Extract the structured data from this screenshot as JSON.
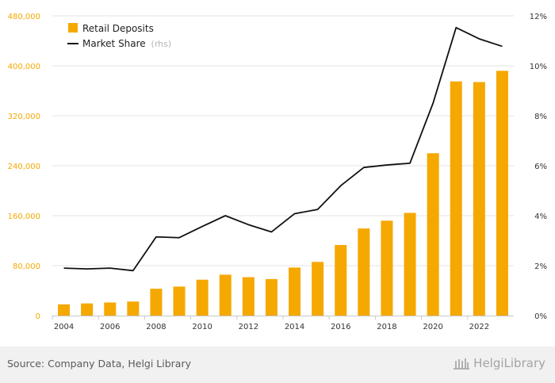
{
  "chart_data": {
    "type": "bar",
    "categories": [
      "2004",
      "2005",
      "2006",
      "2007",
      "2008",
      "2009",
      "2010",
      "2011",
      "2012",
      "2013",
      "2014",
      "2015",
      "2016",
      "2017",
      "2018",
      "2019",
      "2020",
      "2021",
      "2022",
      "2023"
    ],
    "x_tick_labels": [
      "2004",
      "2006",
      "2008",
      "2010",
      "2012",
      "2014",
      "2016",
      "2018",
      "2020",
      "2022"
    ],
    "series": [
      {
        "name": "Retail Deposits",
        "type": "bar",
        "axis": "left",
        "values": [
          18000,
          19500,
          21000,
          22500,
          43000,
          46500,
          57500,
          65500,
          61500,
          58500,
          77000,
          86000,
          113000,
          139500,
          152000,
          164500,
          260000,
          375000,
          374000,
          392000
        ]
      },
      {
        "name": "Market Share",
        "name_suffix": "(rhs)",
        "type": "line",
        "axis": "right",
        "values": [
          1.9,
          1.87,
          1.9,
          1.8,
          3.15,
          3.12,
          3.57,
          4.0,
          3.64,
          3.35,
          4.08,
          4.25,
          5.2,
          5.93,
          6.03,
          6.1,
          8.5,
          11.53,
          11.08,
          10.78
        ]
      }
    ],
    "yleft": {
      "ticks": [
        0,
        80000,
        160000,
        240000,
        320000,
        400000,
        480000
      ],
      "tick_labels": [
        "0",
        "80,000",
        "160,000",
        "240,000",
        "320,000",
        "400,000",
        "480,000"
      ],
      "range": [
        0,
        480000
      ]
    },
    "yright": {
      "ticks": [
        0,
        2,
        4,
        6,
        8,
        10,
        12
      ],
      "tick_labels": [
        "0%",
        "2%",
        "4%",
        "6%",
        "8%",
        "10%",
        "12%"
      ],
      "range": [
        0,
        12
      ]
    },
    "grid": true,
    "legend_position": "top-left",
    "colors": {
      "bar": "#f5a800",
      "line": "#111111",
      "left_axis_text": "#f5a800",
      "grid": "#e3e3e3",
      "tick_text": "#333333",
      "rhs_text": "#b5b5b5"
    }
  },
  "footer": {
    "source": "Source: Company Data, Helgi Library",
    "brand": "HelgiLibrary"
  }
}
